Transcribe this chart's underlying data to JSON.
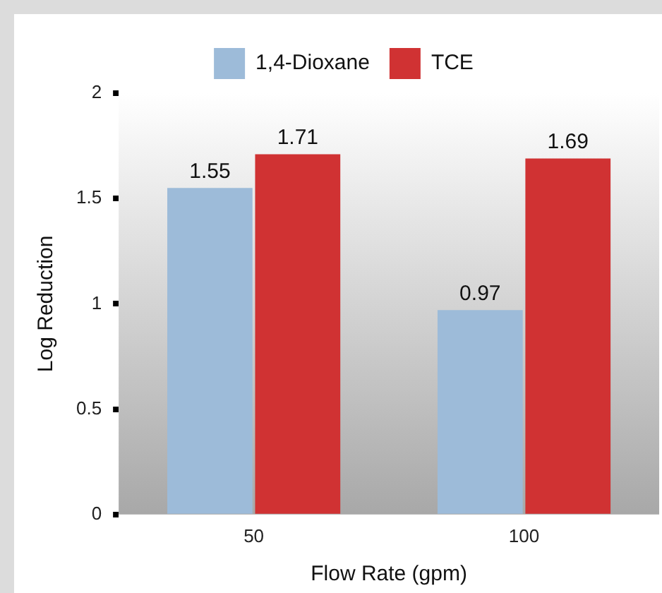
{
  "chart_data": {
    "type": "bar",
    "xlabel": "Flow Rate (gpm)",
    "ylabel": "Log Reduction",
    "categories": [
      "50",
      "100"
    ],
    "series": [
      {
        "name": "1,4-Dioxane",
        "color": "#9dbbd9",
        "values": [
          1.55,
          0.97
        ]
      },
      {
        "name": "TCE",
        "color": "#d03233",
        "values": [
          1.71,
          1.69
        ]
      }
    ],
    "ylim": [
      0,
      2
    ],
    "yticks": [
      0,
      0.5,
      1,
      1.5,
      2
    ],
    "grid": false,
    "legend": "top",
    "data_labels": true
  }
}
